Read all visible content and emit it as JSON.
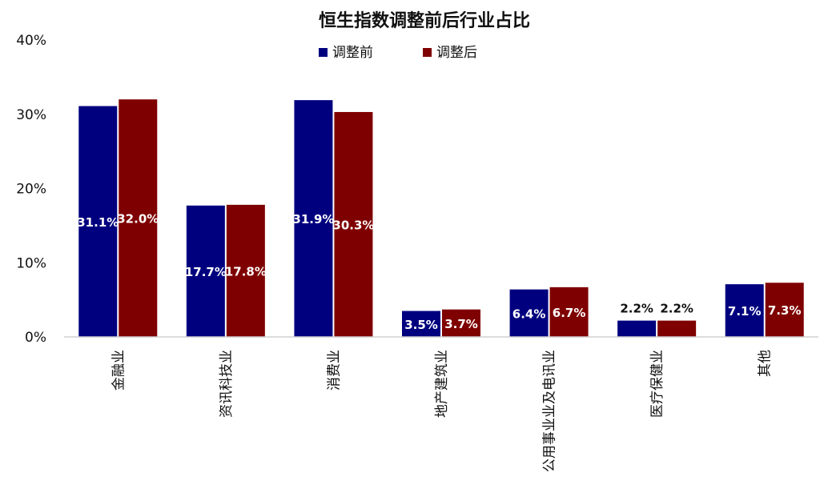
{
  "chart_data": {
    "type": "bar",
    "title": "恒生指数调整前后行业占比",
    "categories": [
      "金融业",
      "资讯科技业",
      "消费业",
      "地产建筑业",
      "公用事业业及电讯业",
      "医疗保健业",
      "其他"
    ],
    "series": [
      {
        "name": "调整前",
        "color": "#00007f",
        "values": [
          31.1,
          17.7,
          31.9,
          3.5,
          6.4,
          2.2,
          7.1
        ],
        "labels": [
          "31.1%",
          "17.7%",
          "31.9%",
          "3.5%",
          "6.4%",
          "2.2%",
          "7.1%"
        ]
      },
      {
        "name": "调整后",
        "color": "#7f0000",
        "values": [
          32.0,
          17.8,
          30.3,
          3.7,
          6.7,
          2.2,
          7.3
        ],
        "labels": [
          "32.0%",
          "17.8%",
          "30.3%",
          "3.7%",
          "6.7%",
          "2.2%",
          "7.3%"
        ]
      }
    ],
    "ylim": [
      0,
      40
    ],
    "yticks": [
      "0%",
      "10%",
      "20%",
      "30%",
      "40%"
    ],
    "legend": "top-center",
    "grid": false
  }
}
